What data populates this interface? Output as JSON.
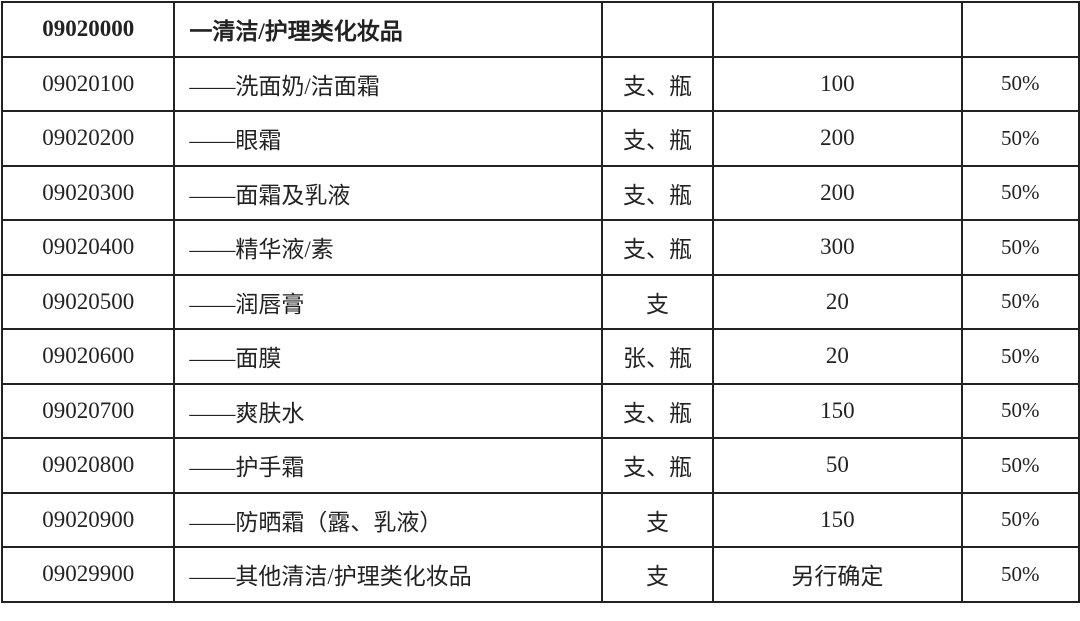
{
  "header": {
    "code": "09020000",
    "name": "一清洁/护理类化妆品",
    "unit": "",
    "price": "",
    "rate": ""
  },
  "rows": [
    {
      "code": "09020100",
      "name": "——洗面奶/洁面霜",
      "unit": "支、瓶",
      "price": "100",
      "rate": "50%"
    },
    {
      "code": "09020200",
      "name": "——眼霜",
      "unit": "支、瓶",
      "price": "200",
      "rate": "50%"
    },
    {
      "code": "09020300",
      "name": "——面霜及乳液",
      "unit": "支、瓶",
      "price": "200",
      "rate": "50%"
    },
    {
      "code": "09020400",
      "name": "——精华液/素",
      "unit": "支、瓶",
      "price": "300",
      "rate": "50%"
    },
    {
      "code": "09020500",
      "name": "——润唇膏",
      "unit": "支",
      "price": "20",
      "rate": "50%"
    },
    {
      "code": "09020600",
      "name": "——面膜",
      "unit": "张、瓶",
      "price": "20",
      "rate": "50%"
    },
    {
      "code": "09020700",
      "name": "——爽肤水",
      "unit": "支、瓶",
      "price": "150",
      "rate": "50%"
    },
    {
      "code": "09020800",
      "name": "——护手霜",
      "unit": "支、瓶",
      "price": "50",
      "rate": "50%"
    },
    {
      "code": "09020900",
      "name": "——防晒霜（露、乳液）",
      "unit": "支",
      "price": "150",
      "rate": "50%"
    },
    {
      "code": "09029900",
      "name": "——其他清洁/护理类化妆品",
      "unit": "支",
      "price": "另行确定",
      "rate": "50%"
    }
  ]
}
